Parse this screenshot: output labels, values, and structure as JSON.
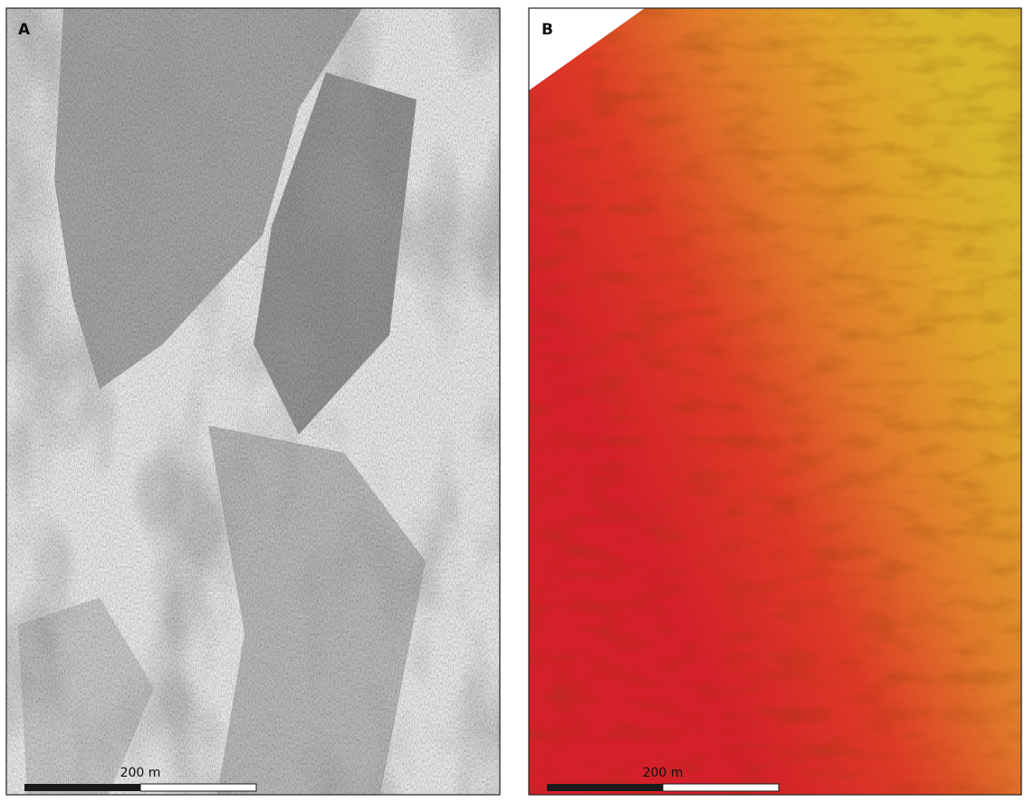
{
  "panels": [
    {
      "label": "A",
      "scale_bar": "200 m"
    },
    {
      "label": "B",
      "scale_bar": "200 m"
    }
  ]
}
